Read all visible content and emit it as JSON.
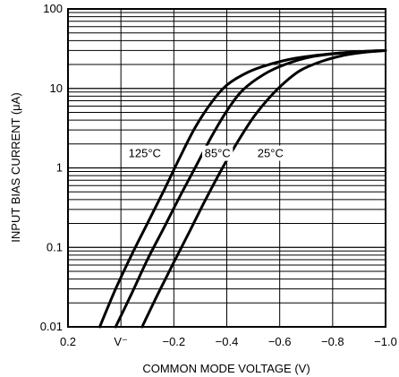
{
  "chart_data": {
    "type": "line",
    "title": "",
    "xlabel": "COMMON MODE VOLTAGE (V)",
    "ylabel": "INPUT BIAS CURRENT (μA)",
    "xlim": [
      0.2,
      -1.0
    ],
    "ylim": [
      0.01,
      100
    ],
    "y_scale": "log",
    "x_direction": "decreasing-right",
    "grid": true,
    "x_ticks": [
      {
        "value": 0.2,
        "label": "0.2"
      },
      {
        "value": 0.0,
        "label": "V⁻"
      },
      {
        "value": -0.2,
        "label": "−0.2"
      },
      {
        "value": -0.4,
        "label": "−0.4"
      },
      {
        "value": -0.6,
        "label": "−0.6"
      },
      {
        "value": -0.8,
        "label": "−0.8"
      },
      {
        "value": -1.0,
        "label": "−1.0"
      }
    ],
    "y_ticks": [
      {
        "value": 0.01,
        "label": "0.01"
      },
      {
        "value": 0.1,
        "label": "0.1"
      },
      {
        "value": 1,
        "label": "1"
      },
      {
        "value": 10,
        "label": "10"
      },
      {
        "value": 100,
        "label": "100"
      }
    ],
    "series": [
      {
        "name": "125°C",
        "x": [
          0.08,
          0.02,
          -0.04,
          -0.1,
          -0.16,
          -0.22,
          -0.28,
          -0.34,
          -0.4,
          -0.48,
          -0.56,
          -0.66,
          -0.78,
          -0.9,
          -1.0
        ],
        "y": [
          0.01,
          0.03,
          0.08,
          0.2,
          0.5,
          1.3,
          3.2,
          6.5,
          11,
          16,
          20,
          24,
          27,
          29,
          30
        ]
      },
      {
        "name": "85°C",
        "x": [
          0.02,
          -0.04,
          -0.1,
          -0.16,
          -0.22,
          -0.28,
          -0.34,
          -0.4,
          -0.46,
          -0.54,
          -0.62,
          -0.72,
          -0.84,
          -0.94,
          -1.0
        ],
        "y": [
          0.01,
          0.026,
          0.07,
          0.17,
          0.42,
          1.0,
          2.4,
          5.2,
          9.5,
          15,
          20,
          25,
          28,
          29.5,
          30
        ]
      },
      {
        "name": "25°C",
        "x": [
          -0.08,
          -0.14,
          -0.2,
          -0.26,
          -0.32,
          -0.38,
          -0.44,
          -0.5,
          -0.56,
          -0.62,
          -0.68,
          -0.76,
          -0.84,
          -0.92,
          -1.0
        ],
        "y": [
          0.01,
          0.026,
          0.065,
          0.16,
          0.4,
          0.95,
          2.1,
          4.3,
          7.6,
          12,
          17,
          22,
          26,
          28.5,
          30
        ]
      }
    ],
    "annotations": [
      {
        "text": "125°C",
        "series": "125°C"
      },
      {
        "text": "85°C",
        "series": "85°C"
      },
      {
        "text": "25°C",
        "series": "25°C"
      }
    ]
  }
}
